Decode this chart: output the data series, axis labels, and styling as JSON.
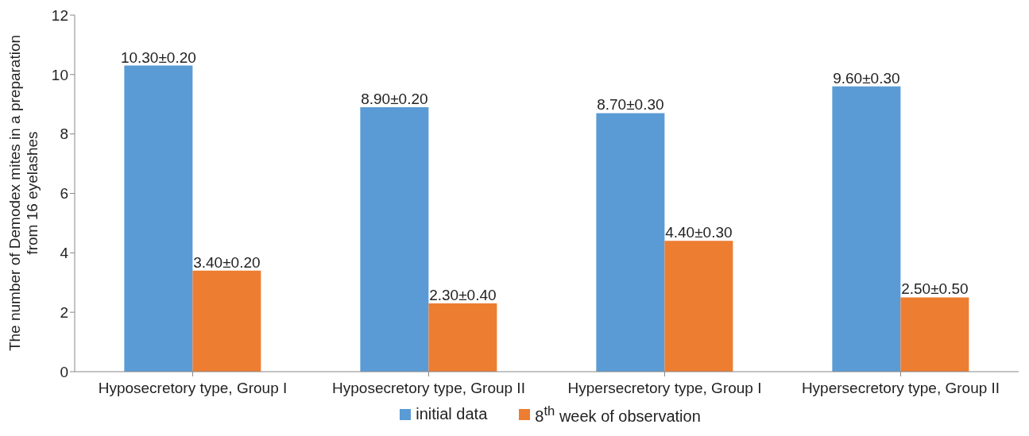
{
  "chart_data": {
    "type": "bar",
    "ylabel": "The number of Demodex mites in a preparation from 16 eyelashes",
    "categories": [
      "Hyposecretory type, Group I",
      "Hyposecretory type, Group II",
      "Hypersecretory type, Group I",
      "Hypersecretory type, Group II"
    ],
    "series": [
      {
        "name": "initial data",
        "color": "#5b9bd5",
        "values": [
          10.3,
          8.9,
          8.7,
          9.6
        ],
        "value_labels": [
          "10.30±0.20",
          "8.90±0.20",
          "8.70±0.30",
          "9.60±0.30"
        ]
      },
      {
        "name": "8$^{th}$ week of observation",
        "color": "#ed7d31",
        "values": [
          3.4,
          2.3,
          4.4,
          2.5
        ],
        "value_labels": [
          "3.40±0.20",
          "2.30±0.40",
          "4.40±0.30",
          "2.50±0.50"
        ]
      }
    ],
    "ylim": [
      0,
      12
    ],
    "yticks": [
      0,
      2,
      4,
      6,
      8,
      10,
      12
    ],
    "legend": "bottom"
  }
}
